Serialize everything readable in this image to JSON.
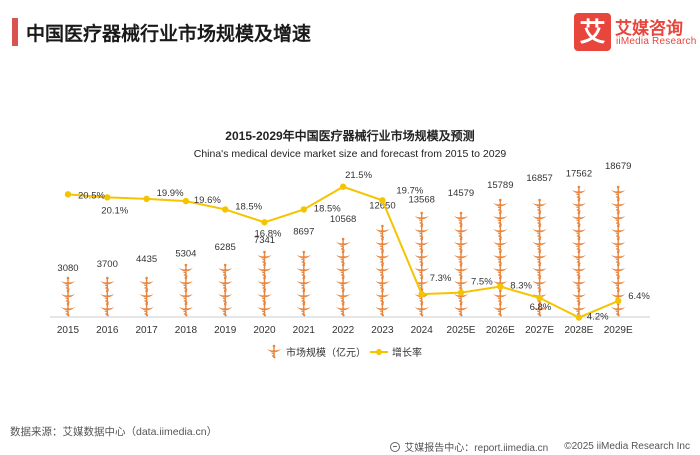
{
  "header": {
    "title": "中国医疗器械行业市场规模及增速"
  },
  "logo": {
    "mark": "艾",
    "name_cn": "艾媒咨询",
    "name_en": "iiMedia Research",
    "color": "#e8453c"
  },
  "footer": {
    "source": "数据来源：艾媒数据中心（data.iimedia.cn）",
    "report_center": "艾媒报告中心：report.iimedia.cn",
    "copyright": "©2025  iiMedia Research  Inc"
  },
  "chart_data": {
    "type": "bar",
    "title": "2015-2029年中国医疗器械行业市场规模及预测",
    "subtitle": "China's medical device market size and forecast from 2015 to 2029",
    "categories": [
      "2015",
      "2016",
      "2017",
      "2018",
      "2019",
      "2020",
      "2021",
      "2022",
      "2023",
      "2024",
      "2025E",
      "2026E",
      "2027E",
      "2028E",
      "2029E"
    ],
    "series": [
      {
        "name": "市场规模（亿元）",
        "kind": "pictograph-bar",
        "color": "#e8843c",
        "values": [
          3080,
          3700,
          4435,
          5304,
          6285,
          7341,
          8697,
          10568,
          12650,
          13568,
          14579,
          15789,
          16857,
          17562,
          18679
        ],
        "labels": [
          "3080",
          "3700",
          "4435",
          "5304",
          "6285",
          "7341",
          "8697",
          "10568",
          "12650",
          "13568",
          "14579",
          "15789",
          "16857",
          "17562",
          "18679"
        ]
      },
      {
        "name": "增长率",
        "kind": "line",
        "color": "#f5c400",
        "values": [
          20.5,
          20.1,
          19.9,
          19.6,
          18.5,
          16.8,
          18.5,
          21.5,
          19.7,
          7.3,
          7.5,
          8.3,
          6.8,
          4.2,
          6.4
        ],
        "labels": [
          "20.5%",
          "20.1%",
          "19.9%",
          "19.6%",
          "18.5%",
          "16.8%",
          "18.5%",
          "21.5%",
          "19.7%",
          "7.3%",
          "7.5%",
          "8.3%",
          "6.8%",
          "4.2%",
          "6.4%"
        ]
      }
    ],
    "legend": "bottom-center",
    "grid": false
  }
}
